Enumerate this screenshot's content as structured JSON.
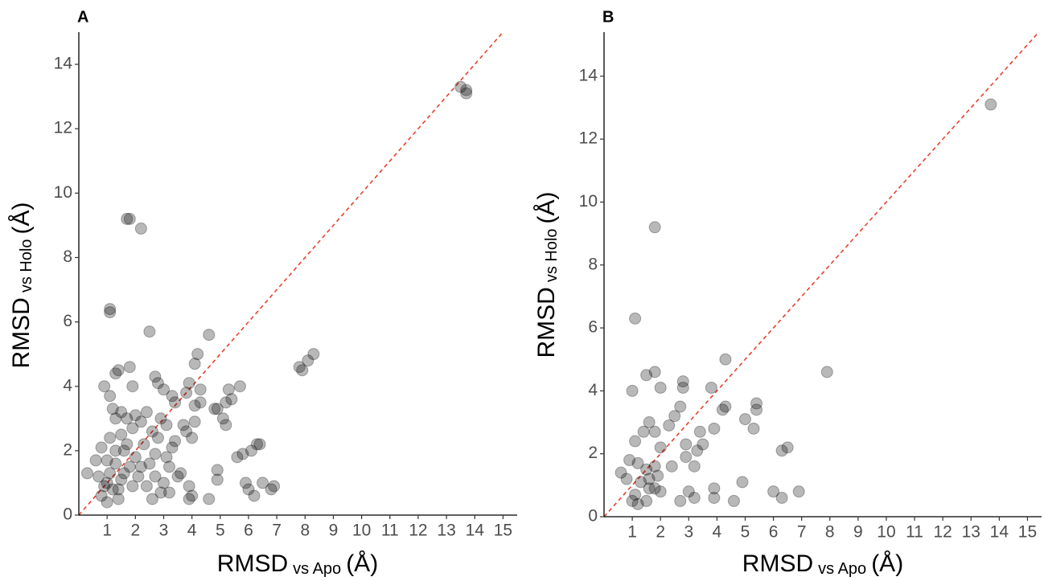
{
  "chart_data": [
    {
      "type": "scatter",
      "panel_label": "A",
      "x_label": {
        "main": "RMSD",
        "sub": "vs Apo",
        "unit": "(Å)"
      },
      "y_label": {
        "main": "RMSD",
        "sub": "vs Holo",
        "unit": "(Å)"
      },
      "color": "#000000",
      "diagonal": true,
      "xlim": [
        0,
        15.5
      ],
      "ylim": [
        0,
        15
      ],
      "xticks": [
        1,
        2,
        3,
        4,
        5,
        6,
        7,
        8,
        9,
        10,
        11,
        12,
        13,
        14,
        15
      ],
      "yticks": [
        0,
        2,
        4,
        6,
        8,
        10,
        12,
        14
      ],
      "x": [
        13.5,
        13.7,
        13.7,
        1.7,
        1.8,
        2.2,
        1.1,
        1.1,
        2.5,
        4.6,
        4.2,
        4.1,
        8.3,
        8.1,
        7.8,
        7.9,
        1.8,
        1.4,
        1.3,
        1.9,
        0.9,
        1.1,
        2.7,
        2.8,
        3.0,
        3.3,
        3.9,
        4.3,
        3.8,
        3.4,
        4.1,
        4.3,
        4.9,
        5.3,
        5.7,
        5.2,
        5.4,
        5.1,
        5.2,
        4.8,
        1.2,
        1.5,
        1.3,
        1.7,
        2.0,
        2.4,
        2.2,
        2.9,
        3.1,
        2.6,
        1.9,
        1.5,
        1.1,
        0.8,
        1.3,
        1.6,
        2.3,
        2.8,
        3.4,
        3.3,
        3.7,
        4.1,
        3.8,
        4.0,
        2.7,
        3.1,
        2.0,
        1.8,
        1.3,
        1.0,
        0.6,
        0.3,
        0.7,
        1.0,
        1.2,
        1.5,
        1.6,
        1.9,
        1.4,
        1.0,
        2.6,
        2.9,
        3.2,
        3.0,
        3.5,
        3.2,
        3.9,
        4.0,
        3.9,
        4.6,
        4.9,
        4.9,
        5.6,
        5.8,
        6.1,
        6.3,
        6.4,
        5.9,
        6.0,
        6.2,
        6.5,
        6.9,
        6.8,
        2.5,
        2.2,
        1.7,
        1.1,
        0.9,
        0.8,
        1.4,
        2.1,
        2.4,
        3.6,
        2.7
      ],
      "y": [
        13.3,
        13.2,
        13.1,
        9.2,
        9.2,
        8.9,
        6.3,
        6.4,
        5.7,
        5.6,
        5.0,
        4.7,
        5.0,
        4.8,
        4.6,
        4.5,
        4.6,
        4.5,
        4.4,
        4.0,
        4.0,
        3.7,
        4.3,
        4.1,
        3.9,
        3.7,
        4.1,
        3.9,
        3.8,
        3.5,
        3.4,
        3.5,
        3.3,
        3.9,
        4.0,
        3.5,
        3.6,
        3.0,
        2.8,
        3.3,
        3.3,
        3.2,
        3.0,
        3.0,
        3.1,
        3.2,
        2.9,
        3.0,
        2.8,
        2.6,
        2.7,
        2.5,
        2.4,
        2.1,
        2.0,
        2.0,
        2.2,
        2.4,
        2.3,
        2.1,
        2.8,
        2.9,
        2.6,
        2.4,
        1.9,
        1.8,
        1.8,
        1.5,
        1.6,
        1.7,
        1.7,
        1.3,
        1.2,
        1.0,
        0.8,
        1.1,
        1.3,
        0.9,
        0.5,
        0.4,
        0.5,
        0.7,
        0.7,
        1.0,
        1.2,
        1.5,
        0.9,
        0.6,
        0.5,
        0.5,
        1.1,
        1.4,
        1.8,
        1.9,
        2.0,
        2.2,
        2.2,
        1.0,
        0.8,
        0.6,
        1.0,
        0.9,
        0.8,
        1.6,
        1.5,
        2.2,
        1.3,
        0.9,
        0.6,
        0.8,
        1.2,
        0.9,
        1.3,
        1.2
      ]
    },
    {
      "type": "scatter",
      "panel_label": "B",
      "x_label": {
        "main": "RMSD",
        "sub": "vs Apo",
        "unit": "(Å)"
      },
      "y_label": {
        "main": "RMSD",
        "sub": "vs Holo",
        "unit": "(Å)"
      },
      "color": "#000000",
      "diagonal": true,
      "xlim": [
        0,
        15.5
      ],
      "ylim": [
        0,
        15.4
      ],
      "xticks": [
        1,
        2,
        3,
        4,
        5,
        6,
        7,
        8,
        9,
        10,
        11,
        12,
        13,
        14,
        15
      ],
      "yticks": [
        0,
        2,
        4,
        6,
        8,
        10,
        12,
        14
      ],
      "x": [
        13.7,
        1.8,
        1.1,
        1.8,
        1.5,
        1.0,
        2.0,
        2.8,
        2.8,
        3.8,
        4.3,
        7.9,
        4.3,
        4.2,
        5.4,
        5.4,
        5.0,
        5.3,
        1.6,
        2.7,
        2.5,
        2.3,
        1.8,
        1.4,
        3.4,
        3.9,
        1.1,
        2.0,
        2.9,
        3.5,
        3.3,
        6.3,
        6.5,
        0.9,
        0.6,
        1.2,
        1.5,
        2.4,
        1.8,
        2.9,
        3.2,
        0.8,
        1.3,
        1.6,
        1.1,
        1.0,
        1.2,
        1.5,
        1.8,
        2.0,
        2.7,
        3.0,
        3.2,
        3.9,
        3.9,
        4.6,
        4.9,
        6.0,
        6.3,
        6.9,
        1.6,
        1.9
      ],
      "y": [
        13.1,
        9.2,
        6.3,
        4.6,
        4.5,
        4.0,
        4.1,
        4.3,
        4.1,
        4.1,
        5.0,
        4.6,
        3.5,
        3.4,
        3.6,
        3.4,
        3.1,
        2.8,
        3.0,
        3.5,
        3.2,
        2.9,
        2.7,
        2.7,
        2.7,
        2.8,
        2.4,
        2.2,
        2.3,
        2.3,
        2.1,
        2.1,
        2.2,
        1.8,
        1.4,
        1.7,
        1.5,
        1.6,
        1.6,
        1.9,
        1.6,
        1.2,
        1.1,
        0.9,
        0.7,
        0.5,
        0.4,
        0.5,
        0.9,
        0.8,
        0.5,
        0.8,
        0.6,
        0.9,
        0.6,
        0.5,
        1.1,
        0.8,
        0.6,
        0.8,
        1.2,
        1.3
      ]
    }
  ]
}
